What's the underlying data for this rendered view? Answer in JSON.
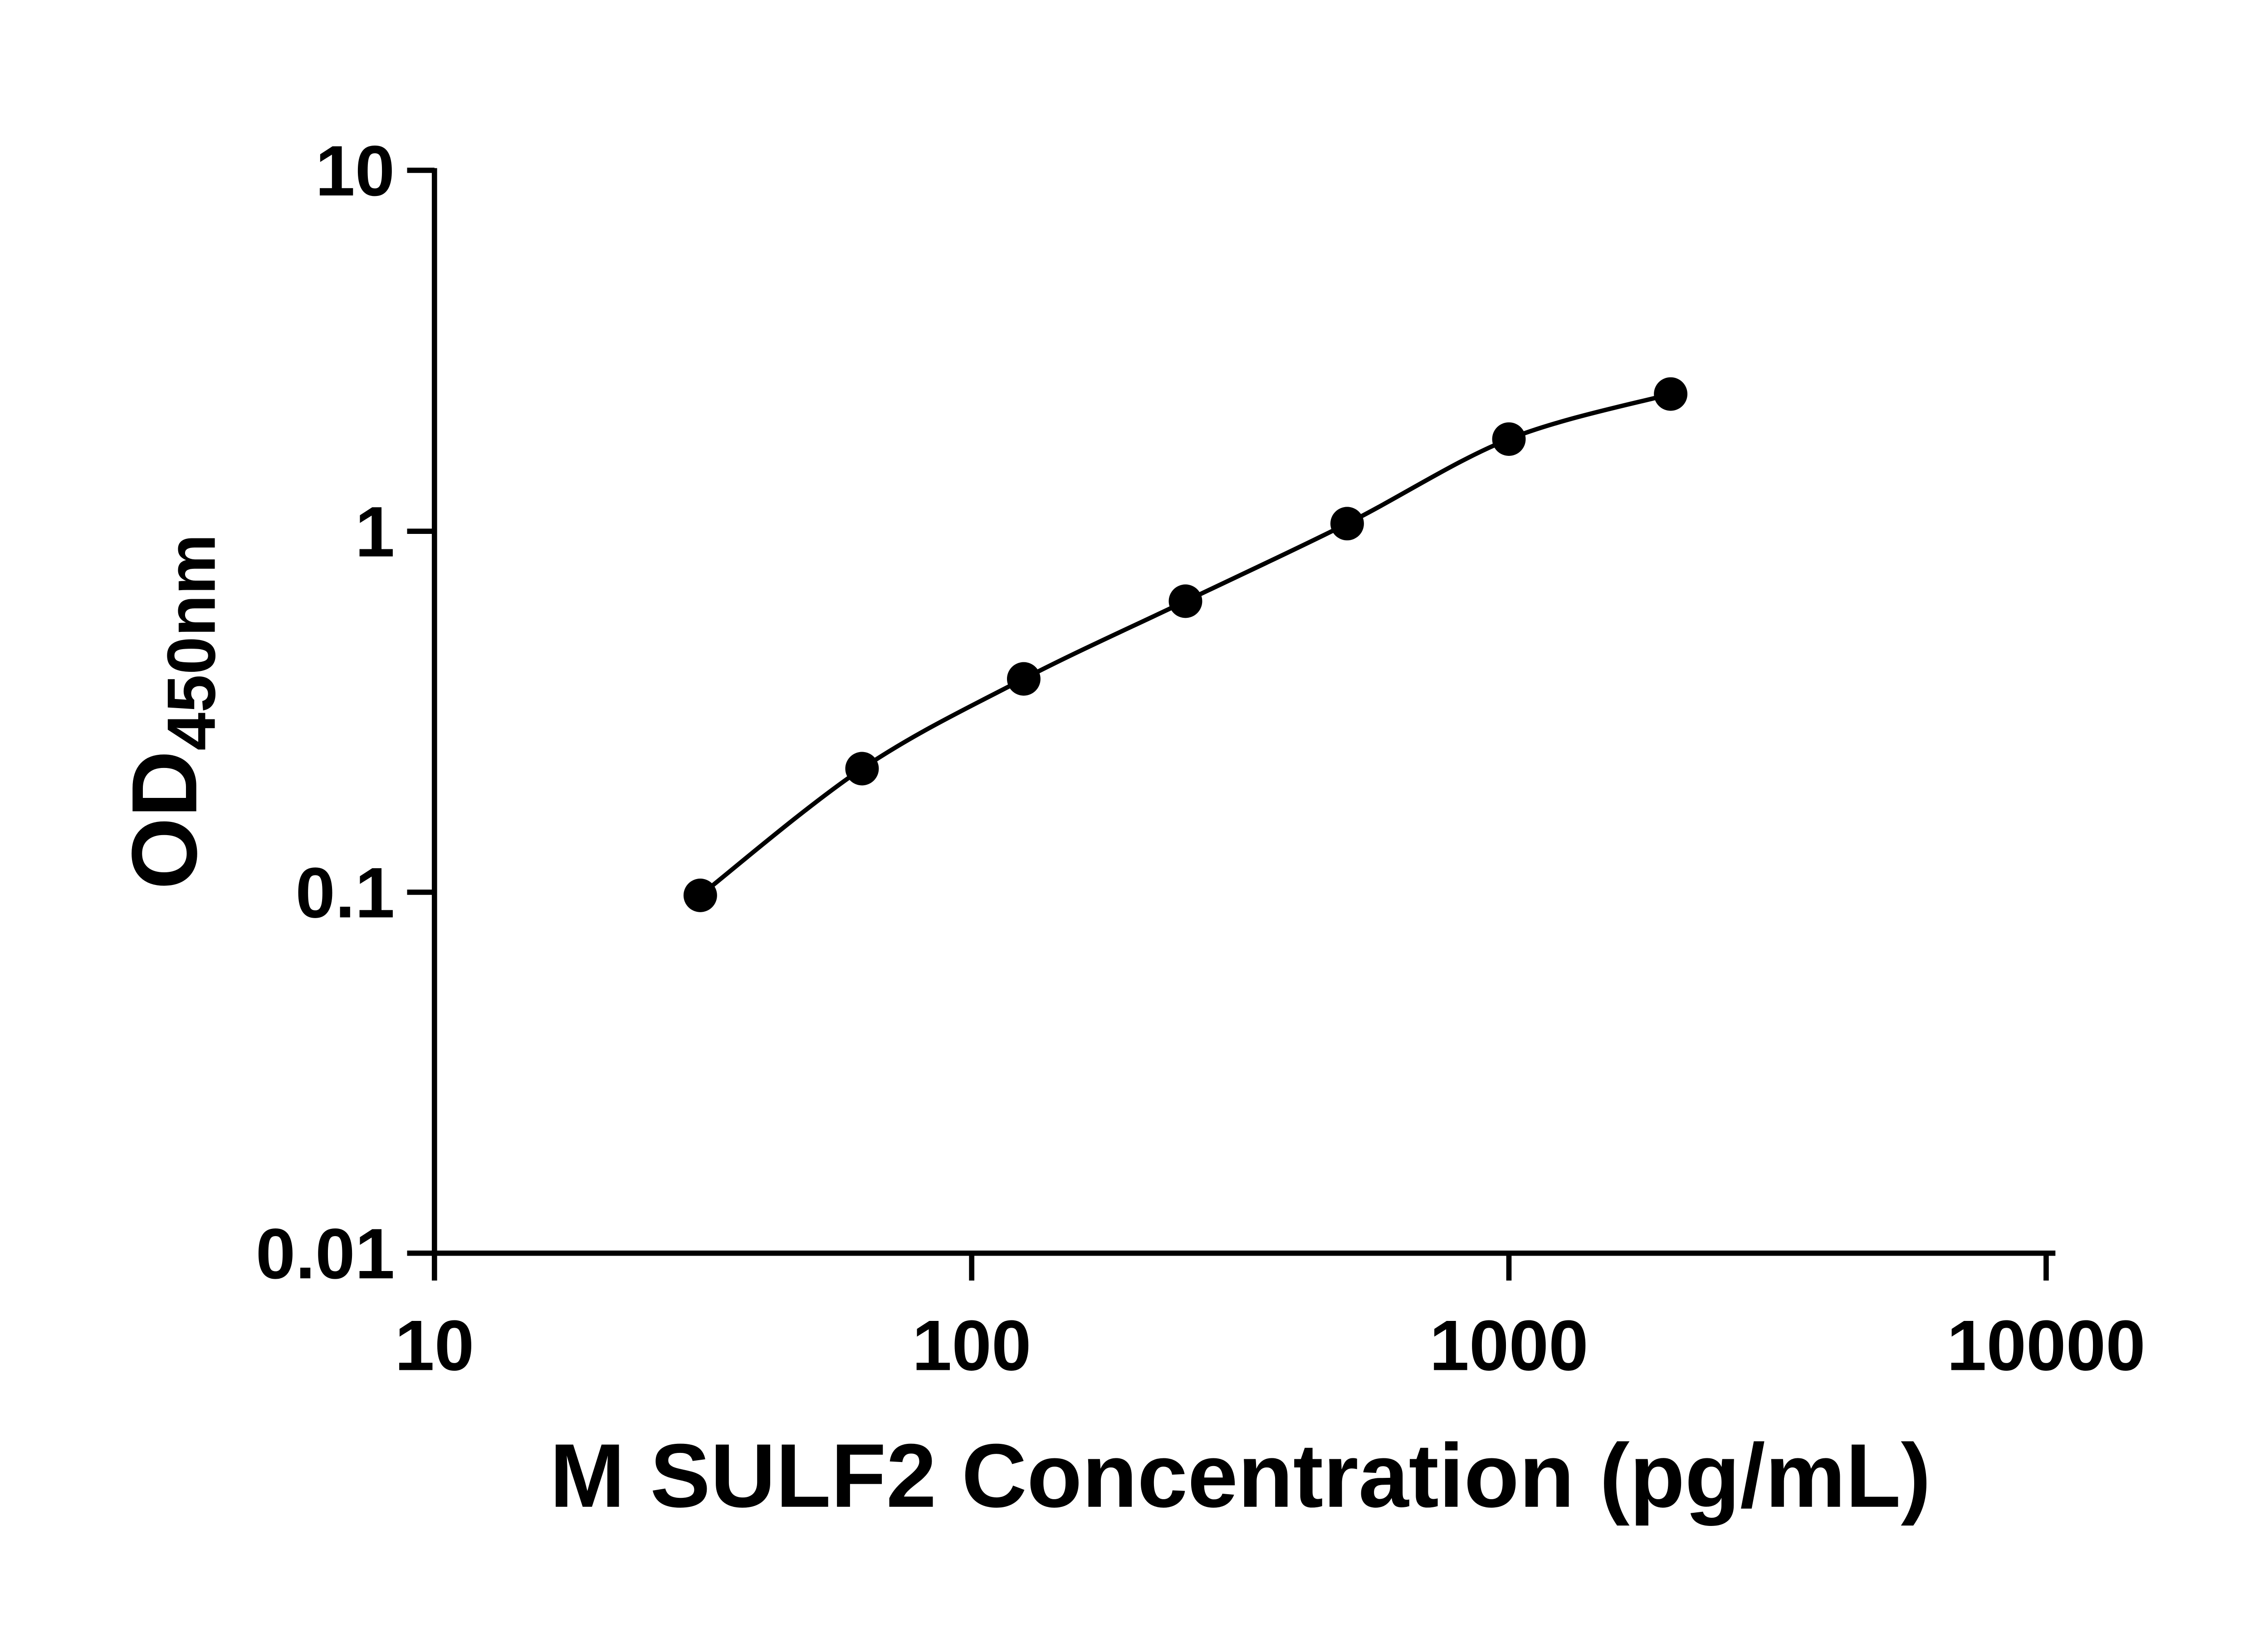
{
  "figure": {
    "background_color": "#ffffff",
    "axis_color": "#000000",
    "marker_color": "#000000",
    "curve_color": "#000000"
  },
  "chart_data": {
    "type": "scatter",
    "title": "",
    "xlabel": "M SULF2 Concentration (pg/mL)",
    "ylabel_main": "OD",
    "ylabel_subscript": "450nm",
    "xscale": "log",
    "yscale": "log",
    "xlim": [
      10,
      10000
    ],
    "ylim": [
      0.01,
      10
    ],
    "x_ticks": [
      10,
      100,
      1000,
      10000
    ],
    "x_tick_labels": [
      "10",
      "100",
      "1000",
      "10000"
    ],
    "y_ticks": [
      0.01,
      0.1,
      1,
      10
    ],
    "y_tick_labels": [
      "0.01",
      "0.1",
      "1",
      "10"
    ],
    "grid": false,
    "legend": null,
    "marker": "filled-circle",
    "line": "smooth-fit-curve",
    "x": [
      31.25,
      62.5,
      125,
      250,
      500,
      1000,
      2000
    ],
    "y": [
      0.098,
      0.22,
      0.39,
      0.64,
      1.05,
      1.8,
      2.4
    ]
  }
}
